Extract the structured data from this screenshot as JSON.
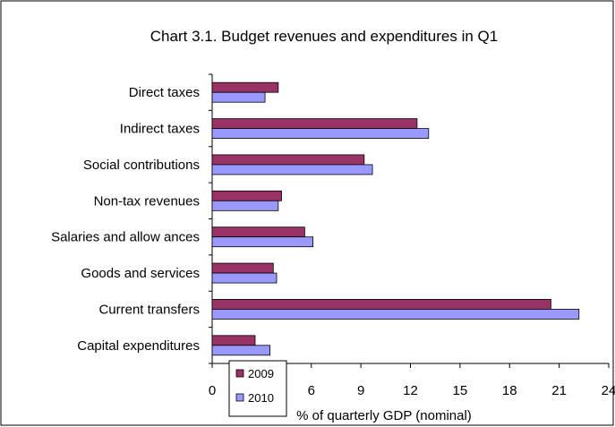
{
  "chart_data": {
    "type": "bar",
    "orientation": "horizontal",
    "title": "Chart 3.1. Budget revenues and expenditures in Q1",
    "xlabel": "% of quarterly GDP (nominal)",
    "ylabel": "",
    "categories": [
      "Direct taxes",
      "Indirect taxes",
      "Social contributions",
      "Non-tax revenues",
      "Salaries and allow ances",
      "Goods and services",
      "Current transfers",
      "Capital expenditures"
    ],
    "series": [
      {
        "name": "2009",
        "color": "#993366",
        "values": [
          4.0,
          12.4,
          9.2,
          4.2,
          5.6,
          3.7,
          20.5,
          2.6
        ]
      },
      {
        "name": "2010",
        "color": "#9999ff",
        "values": [
          3.2,
          13.1,
          9.7,
          4.0,
          6.1,
          3.9,
          22.2,
          3.5
        ]
      }
    ],
    "xlim": [
      0,
      24
    ],
    "xticks": [
      "0",
      "3",
      "6",
      "9",
      "12",
      "15",
      "18",
      "21",
      "24"
    ],
    "grid": false,
    "legend_position": "bottom-left"
  }
}
